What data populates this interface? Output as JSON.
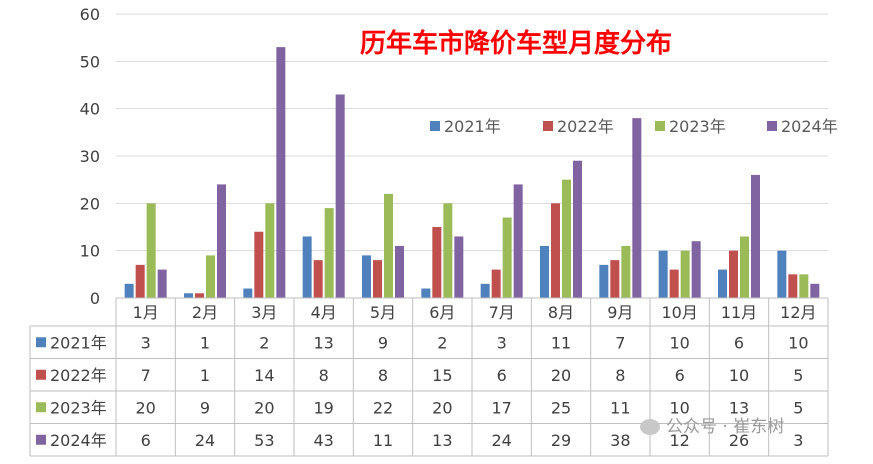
{
  "chart_data": {
    "type": "bar",
    "title": "历年车市降价车型月度分布",
    "categories": [
      "1月",
      "2月",
      "3月",
      "4月",
      "5月",
      "6月",
      "7月",
      "8月",
      "9月",
      "10月",
      "11月",
      "12月"
    ],
    "ylim": [
      0,
      60
    ],
    "yticks": [
      0,
      10,
      20,
      30,
      40,
      50,
      60
    ],
    "grid": true,
    "legend": "top-right",
    "series": [
      {
        "name": "2021年",
        "color": "#4f81bd",
        "values": [
          3,
          1,
          2,
          13,
          9,
          2,
          3,
          11,
          7,
          10,
          6,
          10
        ]
      },
      {
        "name": "2022年",
        "color": "#c0504d",
        "values": [
          7,
          1,
          14,
          8,
          8,
          15,
          6,
          20,
          8,
          6,
          10,
          5
        ]
      },
      {
        "name": "2023年",
        "color": "#9bbb59",
        "values": [
          20,
          9,
          20,
          19,
          22,
          20,
          17,
          25,
          11,
          10,
          13,
          5
        ]
      },
      {
        "name": "2024年",
        "color": "#8064a2",
        "values": [
          6,
          24,
          53,
          43,
          11,
          13,
          24,
          29,
          38,
          12,
          26,
          3
        ]
      }
    ]
  },
  "watermark": "公众号 · 崔东树"
}
